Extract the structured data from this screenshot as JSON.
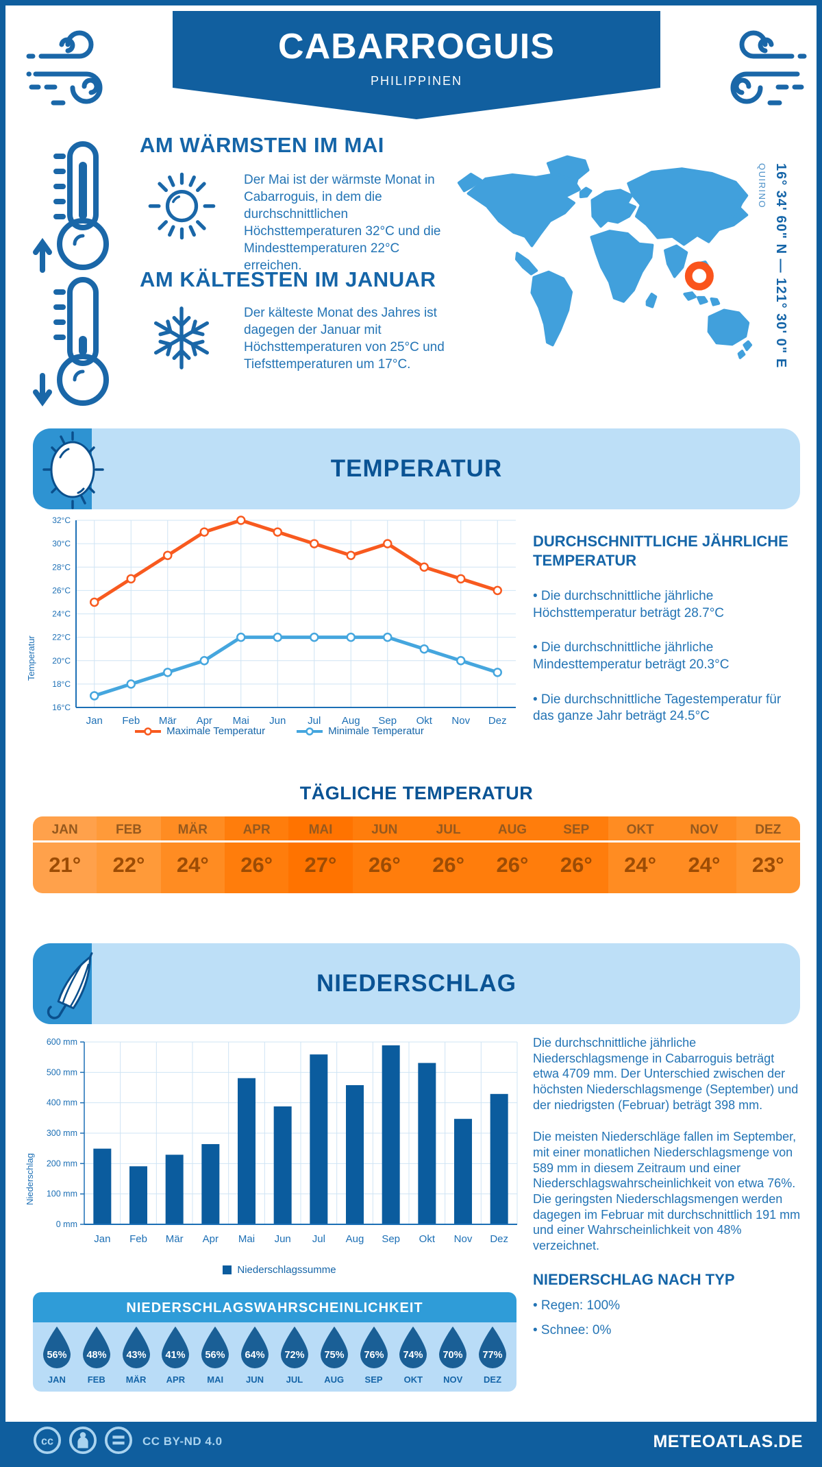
{
  "header": {
    "title": "CABARROGUIS",
    "subtitle": "PHILIPPINEN"
  },
  "highlights": [
    {
      "title": "AM WÄRMSTEN IM MAI",
      "text": "Der Mai ist der wärmste Monat in Cabarroguis, in dem die durchschnittlichen Höchsttemperaturen 32°C und die Mindesttemperaturen 22°C erreichen."
    },
    {
      "title": "AM KÄLTESTEN IM JANUAR",
      "text": "Der kälteste Monat des Jahres ist dagegen der Januar mit Höchsttemperaturen von 25°C und Tiefsttemperaturen um 17°C."
    }
  ],
  "map": {
    "coordinates": "16° 34' 60\" N — 121° 30' 0\" E",
    "region": "QUIRINO",
    "marker_color": "#FA541C",
    "land_color": "#41A0DC"
  },
  "sections": {
    "temperature": {
      "title": "TEMPERATUR"
    },
    "precipitation": {
      "title": "NIEDERSCHLAG"
    }
  },
  "chart_data": [
    {
      "type": "line",
      "categories": [
        "Jan",
        "Feb",
        "Mär",
        "Apr",
        "Mai",
        "Jun",
        "Jul",
        "Aug",
        "Sep",
        "Okt",
        "Nov",
        "Dez"
      ],
      "series": [
        {
          "name": "Maximale Temperatur",
          "color": "#F85A1F",
          "values": [
            25,
            27,
            29,
            31,
            32,
            31,
            30,
            29,
            30,
            28,
            27,
            26
          ]
        },
        {
          "name": "Minimale Temperatur",
          "color": "#45A6DE",
          "values": [
            17,
            18,
            19,
            20,
            22,
            22,
            22,
            22,
            22,
            21,
            20,
            19
          ]
        }
      ],
      "ylabel": "Temperatur",
      "ylim": [
        16,
        32
      ],
      "ytick_step": 2,
      "ytick_suffix": "°C",
      "grid": true,
      "legend_position": "bottom"
    },
    {
      "type": "bar",
      "categories": [
        "Jan",
        "Feb",
        "Mär",
        "Apr",
        "Mai",
        "Jun",
        "Jul",
        "Aug",
        "Sep",
        "Okt",
        "Nov",
        "Dez"
      ],
      "series": [
        {
          "name": "Niederschlagssumme",
          "color": "#0B5C9E",
          "values": [
            249,
            191,
            229,
            264,
            481,
            388,
            559,
            458,
            589,
            531,
            347,
            429
          ]
        }
      ],
      "ylabel": "Niederschlag",
      "ylim": [
        0,
        600
      ],
      "ytick_step": 100,
      "ytick_suffix": " mm",
      "grid": true,
      "legend_position": "bottom"
    }
  ],
  "annual_temperature": {
    "title": "DURCHSCHNITTLICHE JÄHRLICHE TEMPERATUR",
    "bullets": [
      "• Die durchschnittliche jährliche Höchsttemperatur beträgt 28.7°C",
      "• Die durchschnittliche jährliche Mindesttemperatur beträgt 20.3°C",
      "• Die durchschnittliche Tagestemperatur für das ganze Jahr beträgt 24.5°C"
    ]
  },
  "daily_temperature": {
    "title": "TÄGLICHE TEMPERATUR",
    "months": [
      "JAN",
      "FEB",
      "MÄR",
      "APR",
      "MAI",
      "JUN",
      "JUL",
      "AUG",
      "SEP",
      "OKT",
      "NOV",
      "DEZ"
    ],
    "values": [
      "21°",
      "22°",
      "24°",
      "26°",
      "27°",
      "26°",
      "26°",
      "26°",
      "26°",
      "24°",
      "24°",
      "23°"
    ],
    "colors": [
      "#FFA14B",
      "#FF9A39",
      "#FF8C22",
      "#FF7D0C",
      "#FF7300",
      "#FF7D0C",
      "#FF7D0C",
      "#FF7D0C",
      "#FF7D0C",
      "#FF8C22",
      "#FF8C22",
      "#FF9630"
    ]
  },
  "precipitation_text": {
    "p1": "Die durchschnittliche jährliche Niederschlagsmenge in Cabarroguis beträgt etwa 4709 mm. Der Unterschied zwischen der höchsten Niederschlagsmenge (September) und der niedrigsten (Februar) beträgt 398 mm.",
    "p2": "Die meisten Niederschläge fallen im September, mit einer monatlichen Niederschlagsmenge von 589 mm in diesem Zeitraum und einer Niederschlagswahrscheinlichkeit von etwa 76%. Die geringsten Niederschlagsmengen werden dagegen im Februar mit durchschnittlich 191 mm und einer Wahrscheinlichkeit von 48% verzeichnet.",
    "type_title": "NIEDERSCHLAG NACH TYP",
    "bullets": [
      "• Regen: 100%",
      "• Schnee: 0%"
    ]
  },
  "probability": {
    "title": "NIEDERSCHLAGSWAHRSCHEINLICHKEIT",
    "months": [
      "JAN",
      "FEB",
      "MÄR",
      "APR",
      "MAI",
      "JUN",
      "JUL",
      "AUG",
      "SEP",
      "OKT",
      "NOV",
      "DEZ"
    ],
    "values": [
      "56%",
      "48%",
      "43%",
      "41%",
      "56%",
      "64%",
      "72%",
      "75%",
      "76%",
      "74%",
      "70%",
      "77%"
    ],
    "drop_color": "#1A5F96"
  },
  "footer": {
    "license": "CC BY-ND 4.0",
    "site": "METEOATLAS.DE"
  }
}
